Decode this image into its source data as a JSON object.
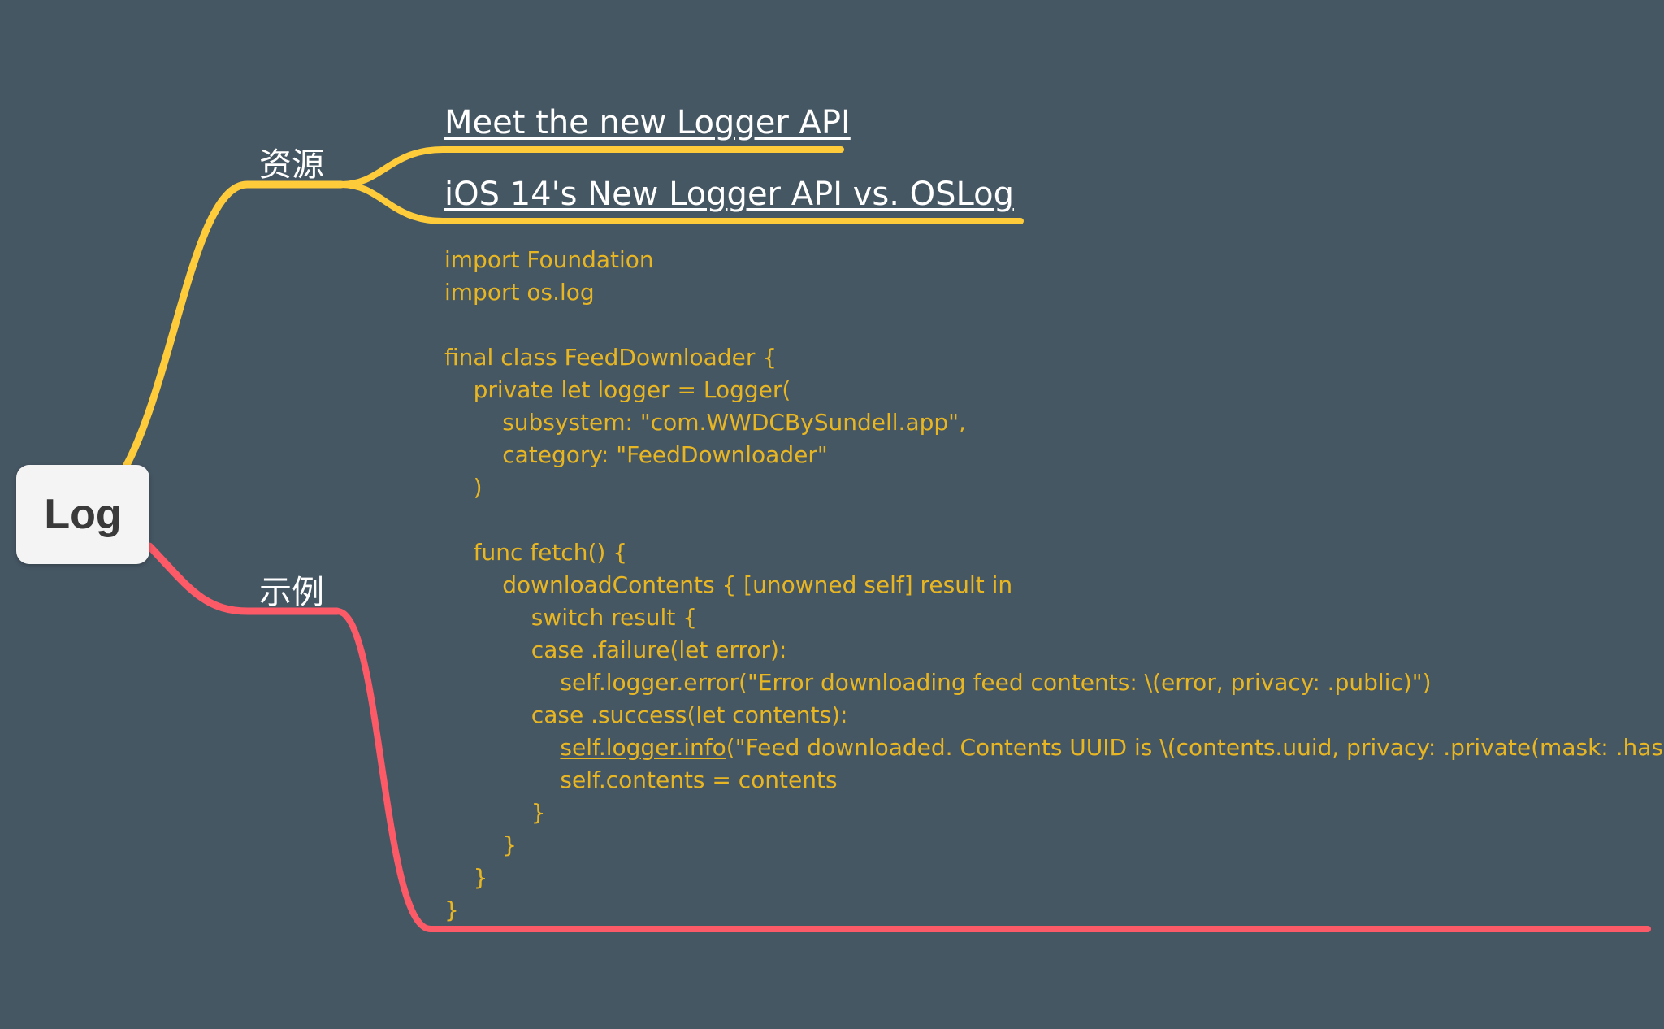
{
  "root": {
    "label": "Log"
  },
  "branches": {
    "resources": {
      "label": "资源",
      "color": "#fecb3a",
      "links": [
        {
          "label": "Meet the new Logger API"
        },
        {
          "label": "iOS 14's New Logger API vs. OSLog"
        }
      ]
    },
    "example": {
      "label": "示例",
      "color": "#fd5a67",
      "code_color": "#e8b623",
      "code_lines": [
        "import Foundation",
        "import os.log",
        "",
        "final class FeedDownloader {",
        "    private let logger = Logger(",
        "        subsystem: \"com.WWDCBySundell.app\",",
        "        category: \"FeedDownloader\"",
        "    )",
        "",
        "    func fetch() {",
        "        downloadContents { [unowned self] result in",
        "            switch result {",
        "            case .failure(let error):",
        "                self.logger.error(\"Error downloading feed contents: \\(error, privacy: .public)\")",
        "            case .success(let contents):",
        "                self.logger.info(\"Feed downloaded. Contents UUID is \\(contents.uuid, privacy: .private(mask: .hash))\")",
        "                self.contents = contents",
        "            }",
        "        }",
        "    }",
        "}"
      ],
      "underlined_prefix": {
        "line": 15,
        "text": "self.logger.info"
      }
    }
  }
}
